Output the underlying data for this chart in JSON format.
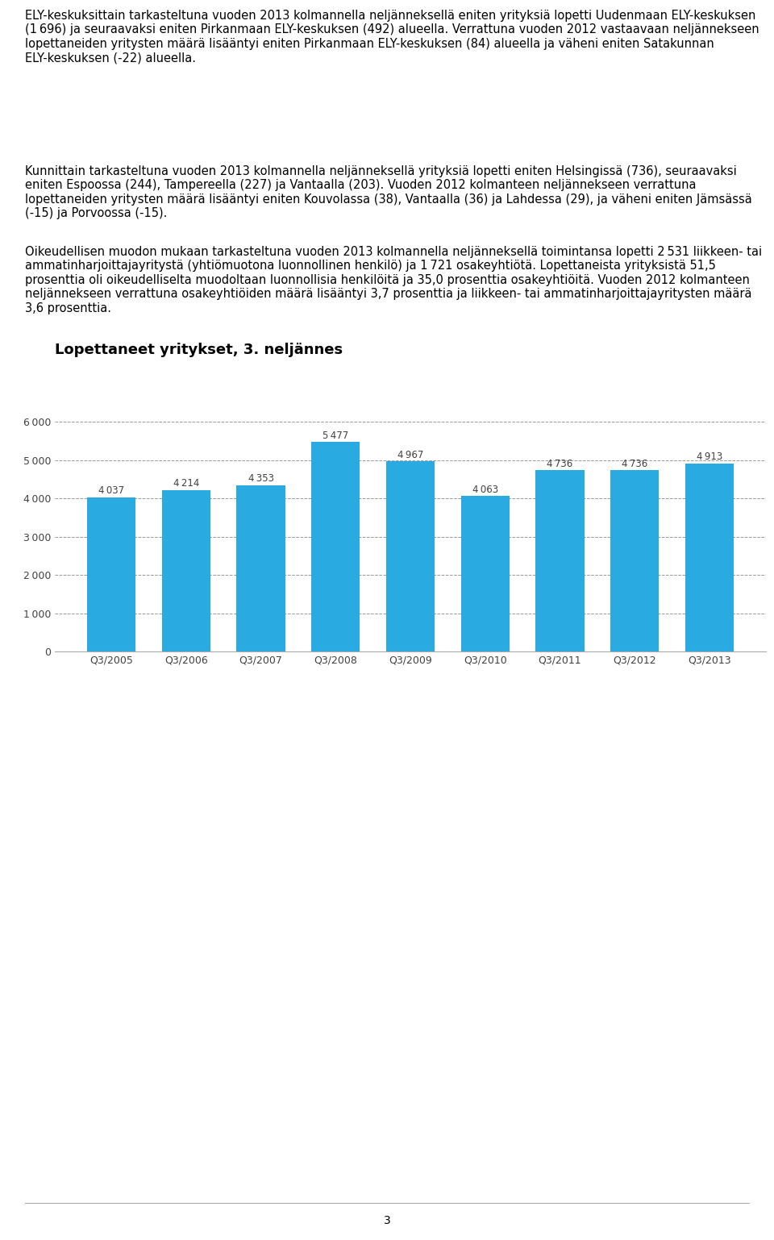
{
  "title": "Lopettaneet yritykset, 3. neljännes",
  "categories": [
    "Q3/2005",
    "Q3/2006",
    "Q3/2007",
    "Q3/2008",
    "Q3/2009",
    "Q3/2010",
    "Q3/2011",
    "Q3/2012",
    "Q3/2013"
  ],
  "values": [
    4037,
    4214,
    4353,
    5477,
    4967,
    4063,
    4736,
    4736,
    4913
  ],
  "bar_color": "#29abe2",
  "label_color": "#404040",
  "ytick_labels": [
    "0",
    "1 000",
    "2 000",
    "3 000",
    "4 000",
    "5 000",
    "6 000"
  ],
  "yticks": [
    0,
    1000,
    2000,
    3000,
    4000,
    5000,
    6000
  ],
  "ylim": [
    0,
    6600
  ],
  "grid_color": "#999999",
  "background_color": "#ffffff",
  "title_fontsize": 13,
  "tick_fontsize": 9,
  "value_label_fontsize": 8.5,
  "text_blocks": [
    "ELY-keskuksittain tarkasteltuna vuoden 2013 kolmannella neljänneksellä eniten yrityksiä lopetti Uudenmaan ELY-keskuksen (1 696) ja seuraavaksi eniten Pirkanmaan ELY-keskuksen (492) alueella. Verrattuna vuoden 2012 vastaavaan neljännekseen lopettaneiden yritysten määrä lisääntyi eniten Pirkanmaan ELY-keskuksen (84) alueella ja väheni eniten Satakunnan ELY-keskuksen (-22) alueella.",
    "Kunnittain tarkasteltuna vuoden 2013 kolmannella neljänneksellä yrityksiä lopetti eniten Helsingissä (736), seuraavaksi eniten Espoossa (244), Tampereella (227) ja Vantaalla (203). Vuoden 2012 kolmanteen neljännekseen verrattuna lopettaneiden yritysten määrä lisääntyi eniten Kouvolassa (38), Vantaalla (36) ja Lahdessa (29), ja väheni eniten Jämsässä (-15) ja Porvoossa (-15).",
    "Oikeudellisen muodon mukaan tarkasteltuna vuoden 2013 kolmannella neljänneksellä toimintansa lopetti 2 531 liikkeen- tai ammatinharjoittajayritystä (yhtiömuotona luonnollinen henkilö) ja 1 721 osakeyhtiötä. Lopettaneista yrityksistä 51,5 prosenttia oli oikeudelliselta muodoltaan luonnollisia henkilöitä ja 35,0 prosenttia osakeyhtiöitä. Vuoden 2012 kolmanteen neljännekseen verrattuna osakeyhtiöiden määrä lisääntyi 3,7 prosenttia ja liikkeen- tai ammatinharjoittajayritysten määrä 3,6 prosenttia."
  ],
  "footer_text": "3",
  "text_fontsize": 10.5,
  "text_color": "#000000"
}
